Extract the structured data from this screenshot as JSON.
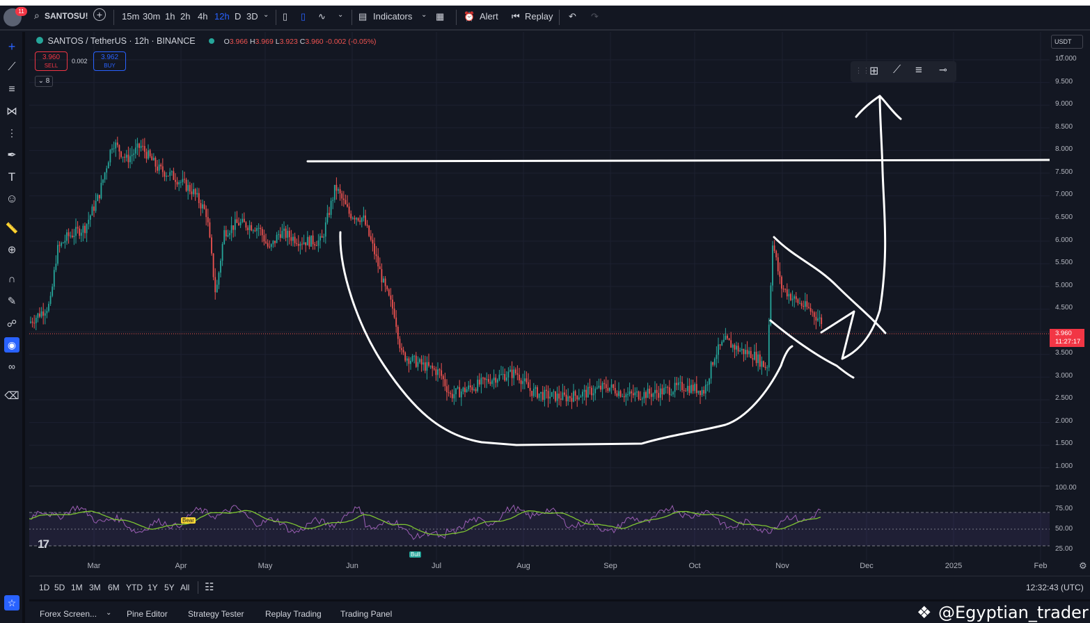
{
  "topbar": {
    "notif_count": "11",
    "symbol_search": "SANTOSU!",
    "intervals": [
      "15m",
      "30m",
      "1h",
      "2h",
      "4h",
      "12h",
      "D",
      "3D"
    ],
    "active_interval": "12h",
    "indicators_label": "Indicators",
    "alert_label": "Alert",
    "replay_label": "Replay"
  },
  "legend": {
    "title": "SANTOS / TetherUS · 12h · BINANCE",
    "o_label": "O",
    "o": "3.966",
    "h_label": "H",
    "h": "3.969",
    "l_label": "L",
    "l": "3.923",
    "c_label": "C",
    "c": "3.960",
    "change": "-0.002 (-0.05%)",
    "sell_price": "3.960",
    "sell_label": "SELL",
    "spread": "0.002",
    "buy_price": "3.962",
    "buy_label": "BUY",
    "collapse_count": "8"
  },
  "price_axis": {
    "currency": "USDT",
    "labels": [
      "10.000",
      "9.500",
      "9.000",
      "8.500",
      "8.000",
      "7.500",
      "7.000",
      "6.500",
      "6.000",
      "5.500",
      "5.000",
      "4.500",
      "3.500",
      "3.000",
      "2.500",
      "2.000",
      "1.500",
      "1.000"
    ],
    "current_price": "3.960",
    "countdown": "11:27:17",
    "rsi_labels": [
      "100.00",
      "75.00",
      "50.00",
      "25.00"
    ]
  },
  "time_axis": [
    "Mar",
    "Apr",
    "May",
    "Jun",
    "Jul",
    "Aug",
    "Sep",
    "Oct",
    "Nov",
    "Dec",
    "2025",
    "Feb"
  ],
  "rsi": {
    "bear_label": "Bear",
    "bull_label": "Bull"
  },
  "ranges": [
    "1D",
    "5D",
    "1M",
    "3M",
    "6M",
    "YTD",
    "1Y",
    "5Y",
    "All"
  ],
  "clock": "12:32:43 (UTC)",
  "footer": {
    "tabs": [
      "Forex Screen...",
      "Pine Editor",
      "Strategy Tester",
      "Replay Trading",
      "Trading Panel"
    ],
    "watermark": "@Egyptian_trader"
  },
  "colors": {
    "up": "#26a69a",
    "down": "#ef5350",
    "rsi": "#9c5fb5",
    "rsi_ma": "#7ec432",
    "accent": "#2962ff"
  }
}
